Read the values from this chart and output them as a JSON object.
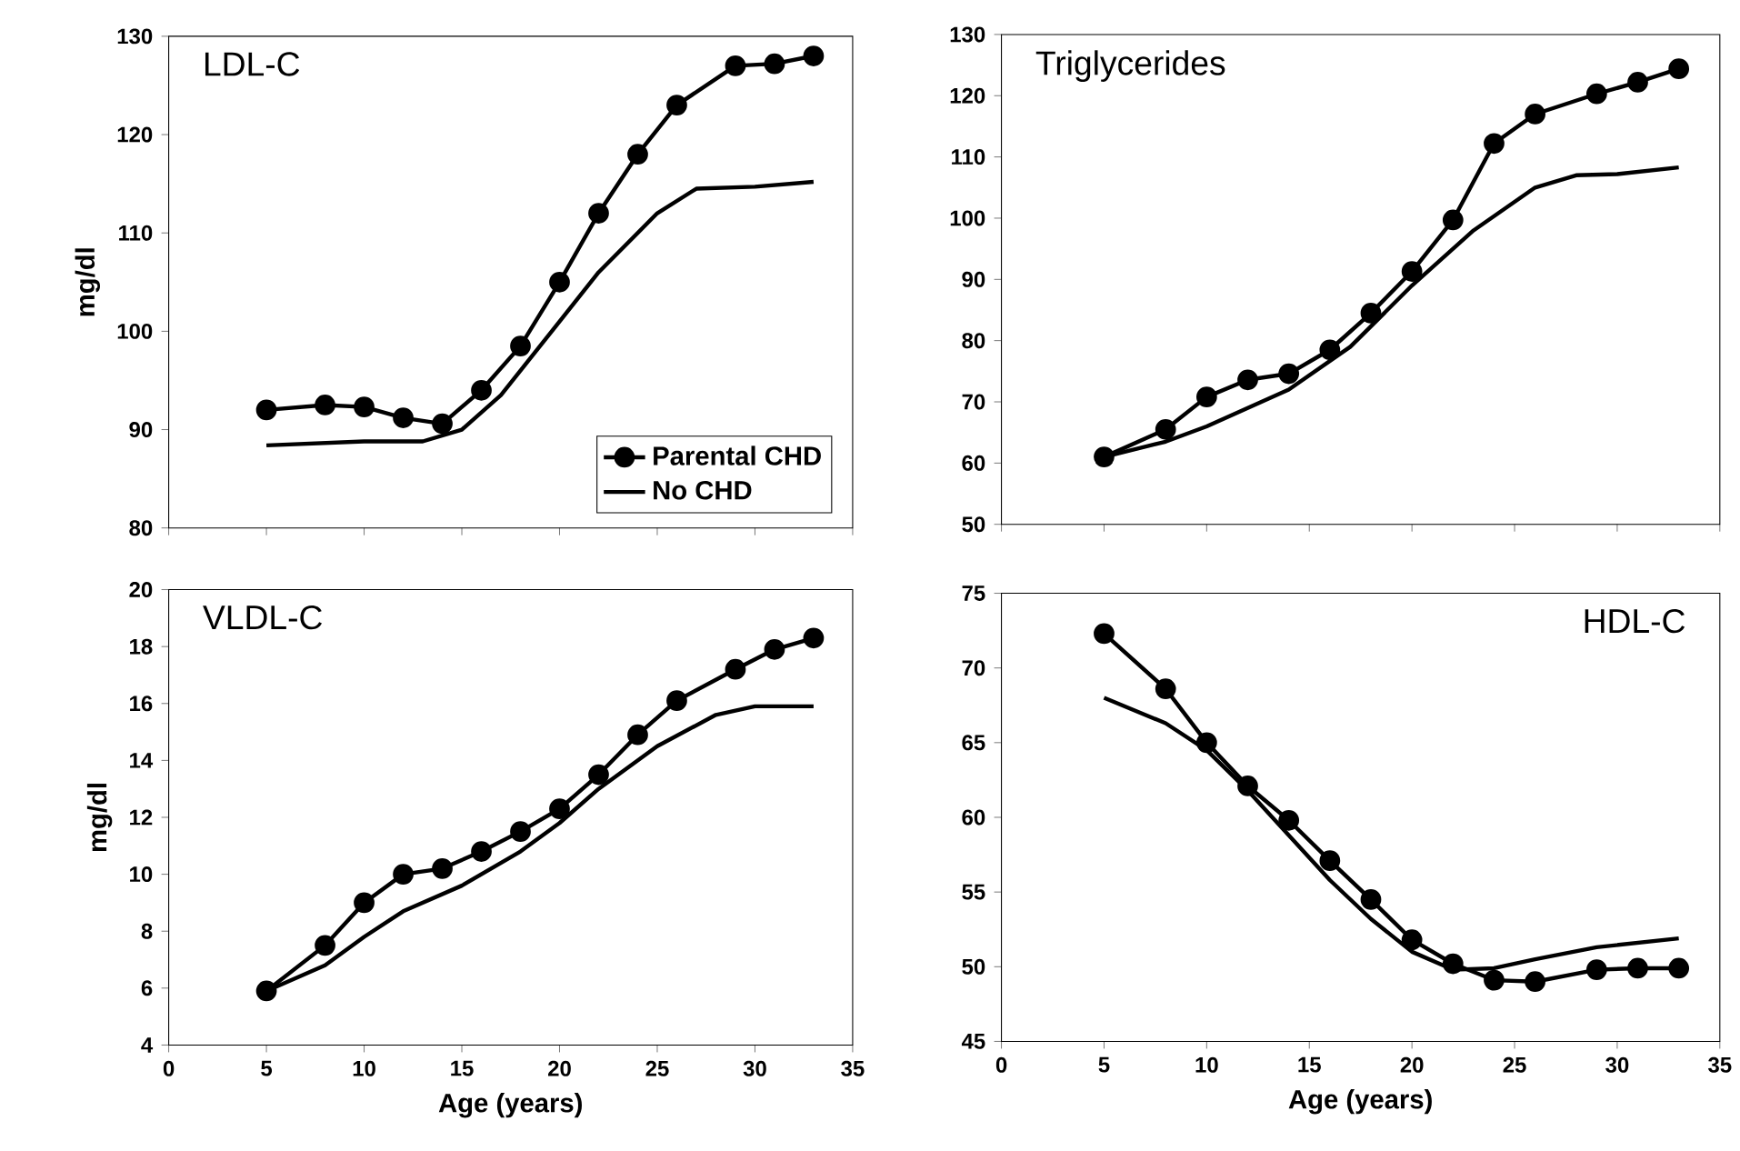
{
  "chart_data": [
    {
      "type": "line",
      "title": "LDL-C",
      "ylabel": "mg/dl",
      "xlim": [
        0,
        35
      ],
      "xticks": [
        0,
        5,
        10,
        15,
        20,
        25,
        30,
        35
      ],
      "ylim": [
        80,
        130
      ],
      "yticks": [
        80,
        90,
        100,
        110,
        120,
        130
      ],
      "tick_labels": "y",
      "legend": "bottom right",
      "line_style": "solid",
      "series": [
        {
          "name": "Parental CHD",
          "color": "#000000",
          "marker": "circle",
          "x": [
            5,
            8,
            10,
            12,
            14,
            16,
            18,
            20,
            22,
            24,
            26,
            29,
            31,
            33
          ],
          "values": [
            92,
            92.5,
            92.3,
            91.2,
            90.6,
            94,
            98.5,
            105,
            112,
            118,
            123,
            127,
            127.2,
            128
          ]
        },
        {
          "name": "No CHD",
          "color": "#000000",
          "marker": "none",
          "x": [
            5,
            10,
            13,
            15,
            17,
            20,
            22,
            25,
            27,
            30,
            33
          ],
          "values": [
            88.4,
            88.8,
            88.8,
            90,
            93.5,
            101,
            106,
            112,
            114.5,
            114.7,
            115.2
          ]
        }
      ]
    },
    {
      "type": "line",
      "title": "Triglycerides",
      "xlim": [
        0,
        35
      ],
      "xticks": [
        0,
        5,
        10,
        15,
        20,
        25,
        30,
        35
      ],
      "ylim": [
        50,
        130
      ],
      "yticks": [
        50,
        60,
        70,
        80,
        90,
        100,
        110,
        120,
        130
      ],
      "tick_labels": "y",
      "line_style": "solid",
      "series": [
        {
          "color": "#000000",
          "marker": "circle",
          "x": [
            5,
            8,
            10,
            12,
            14,
            16,
            18,
            20,
            22,
            24,
            26,
            29,
            31,
            33
          ],
          "values": [
            61,
            65.5,
            70.8,
            73.6,
            74.6,
            78.5,
            84.5,
            91.3,
            99.7,
            112.2,
            117,
            120.3,
            122.2,
            124.4
          ]
        },
        {
          "color": "#000000",
          "marker": "none",
          "x": [
            5,
            8,
            10,
            14,
            17,
            20,
            23,
            26,
            28,
            30,
            33
          ],
          "values": [
            61,
            63.5,
            66,
            72,
            79,
            89,
            98,
            105,
            107,
            107.2,
            108.3
          ]
        }
      ]
    },
    {
      "type": "line",
      "title": "VLDL-C",
      "ylabel": "mg/dl",
      "xlabel": "Age (years)",
      "xlim": [
        0,
        35
      ],
      "xticks": [
        0,
        5,
        10,
        15,
        20,
        25,
        30,
        35
      ],
      "ylim": [
        4,
        20
      ],
      "yticks": [
        4,
        6,
        8,
        10,
        12,
        14,
        16,
        18,
        20
      ],
      "line_style": "solid",
      "series": [
        {
          "color": "#000000",
          "marker": "circle",
          "x": [
            5,
            8,
            10,
            12,
            14,
            16,
            18,
            20,
            22,
            24,
            26,
            29,
            31,
            33
          ],
          "values": [
            5.9,
            7.5,
            9.0,
            10.0,
            10.2,
            10.8,
            11.5,
            12.3,
            13.5,
            14.9,
            16.1,
            17.2,
            17.9,
            18.3
          ]
        },
        {
          "color": "#000000",
          "marker": "none",
          "x": [
            5,
            8,
            10,
            12,
            15,
            18,
            20,
            22,
            25,
            28,
            30,
            33
          ],
          "values": [
            5.9,
            6.8,
            7.8,
            8.7,
            9.6,
            10.8,
            11.8,
            13,
            14.5,
            15.6,
            15.9,
            15.9
          ]
        }
      ]
    },
    {
      "type": "line",
      "title": "HDL-C",
      "xlabel": "Age (years)",
      "xlim": [
        0,
        35
      ],
      "xticks": [
        0,
        5,
        10,
        15,
        20,
        25,
        30,
        35
      ],
      "ylim": [
        45,
        75
      ],
      "yticks": [
        45,
        50,
        55,
        60,
        65,
        70,
        75
      ],
      "line_style": "solid",
      "series": [
        {
          "color": "#000000",
          "marker": "circle",
          "x": [
            5,
            8,
            10,
            12,
            14,
            16,
            18,
            20,
            22,
            24,
            26,
            29,
            31,
            33
          ],
          "values": [
            72.3,
            68.6,
            65,
            62.1,
            59.8,
            57.1,
            54.5,
            51.8,
            50.2,
            49.1,
            49,
            49.8,
            49.9,
            49.9
          ]
        },
        {
          "color": "#000000",
          "marker": "none",
          "x": [
            5,
            8,
            10,
            12,
            14,
            16,
            18,
            20,
            22,
            24,
            26,
            29,
            33
          ],
          "values": [
            68,
            66.3,
            64.5,
            61.8,
            58.8,
            55.8,
            53.2,
            51,
            49.8,
            49.9,
            50.5,
            51.3,
            51.9
          ]
        }
      ]
    }
  ]
}
